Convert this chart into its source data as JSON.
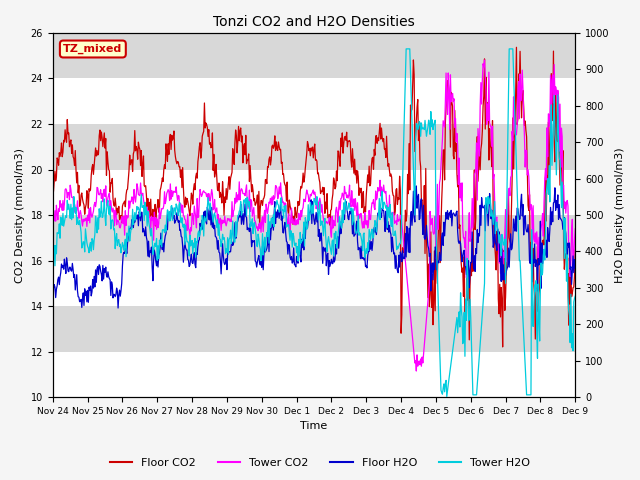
{
  "title": "Tonzi CO2 and H2O Densities",
  "xlabel": "Time",
  "ylabel_left": "CO2 Density (mmol/m3)",
  "ylabel_right": "H2O Density (mmol/m3)",
  "ylim_left": [
    10,
    26
  ],
  "ylim_right": [
    0,
    1000
  ],
  "yticks_left": [
    10,
    12,
    14,
    16,
    18,
    20,
    22,
    24,
    26
  ],
  "yticks_right": [
    0,
    100,
    200,
    300,
    400,
    500,
    600,
    700,
    800,
    900,
    1000
  ],
  "xtick_labels": [
    "Nov 24",
    "Nov 25",
    "Nov 26",
    "Nov 27",
    "Nov 28",
    "Nov 29",
    "Nov 30",
    "Dec 1",
    "Dec 2",
    "Dec 3",
    "Dec 4",
    "Dec 5",
    "Dec 6",
    "Dec 7",
    "Dec 8",
    "Dec 9"
  ],
  "colors": {
    "floor_co2": "#cc0000",
    "tower_co2": "#ff00ff",
    "floor_h2o": "#0000cc",
    "tower_h2o": "#00ccdd"
  },
  "legend_box_label": "TZ_mixed",
  "legend_box_facecolor": "#ffffcc",
  "legend_box_edgecolor": "#cc0000",
  "plot_bg_color": "#d8d8d8",
  "band_color_light": "#e8e8e8",
  "band_color_dark": "#d0d0d0",
  "legend_entries": [
    "Floor CO2",
    "Tower CO2",
    "Floor H2O",
    "Tower H2O"
  ]
}
